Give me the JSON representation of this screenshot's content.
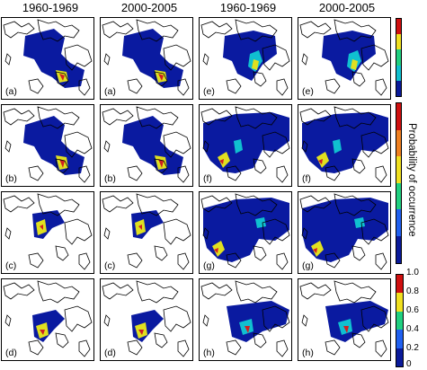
{
  "column_titles": [
    "1960-1969",
    "2000-2005",
    "1960-1969",
    "2000-2005"
  ],
  "panels": [
    [
      "(a)",
      "(a)",
      "(e)",
      "(e)"
    ],
    [
      "(b)",
      "(b)",
      "(f)",
      "(f)"
    ],
    [
      "(c)",
      "(c)",
      "(g)",
      "(g)"
    ],
    [
      "(d)",
      "(d)",
      "(h)",
      "(h)"
    ]
  ],
  "colorbar": {
    "label": "Probability of occurrence",
    "ticks": [
      "1.0",
      "0.8",
      "0.6",
      "0.4",
      "0.2",
      "0"
    ],
    "colors": [
      "#d01010",
      "#f08020",
      "#f0e020",
      "#20d080",
      "#2060f0",
      "#0a1a9a"
    ]
  },
  "map_colors": {
    "land_outline": "#000000",
    "range_low": "#0a1aa0",
    "range_mid": "#10c0d0",
    "range_high": "#e0e020",
    "range_peak": "#d02020"
  }
}
